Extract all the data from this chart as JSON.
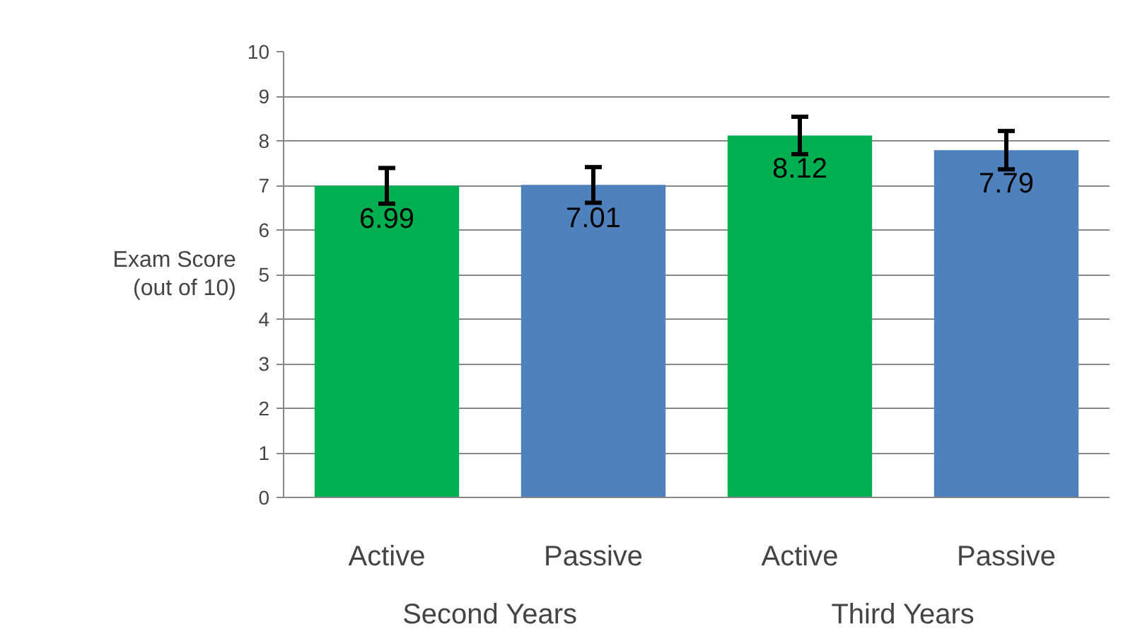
{
  "chart_data": {
    "type": "bar",
    "ylabel": "Exam Score\n(out of 10)",
    "categories": [
      "Active",
      "Passive",
      "Active",
      "Passive"
    ],
    "values": [
      6.99,
      7.01,
      8.12,
      7.79
    ],
    "colors": [
      "#00b050",
      "#4f81bd",
      "#00b050",
      "#4f81bd"
    ],
    "errors": [
      0.4,
      0.4,
      0.42,
      0.43
    ],
    "data_labels": true,
    "annotations": [
      "Second Years",
      "Third Years"
    ],
    "ylim": [
      0,
      10
    ],
    "yticks": [
      0,
      1,
      2,
      3,
      4,
      5,
      6,
      7,
      8,
      9,
      10
    ],
    "grid": "y"
  }
}
